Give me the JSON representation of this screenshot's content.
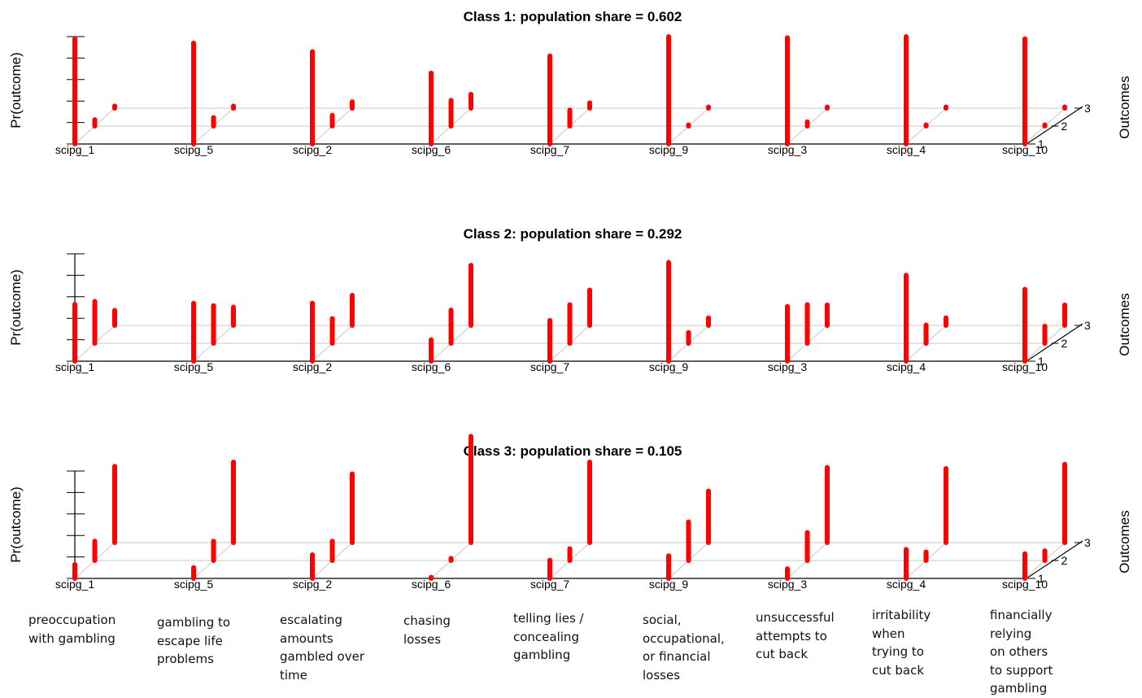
{
  "chart_data": [
    {
      "type": "bar",
      "title": "Class 1: population share = 0.602",
      "ylabel": "Pr(outcome)",
      "zlabel": "Outcomes",
      "categories": [
        "scipg_1",
        "scipg_5",
        "scipg_2",
        "scipg_6",
        "scipg_7",
        "scipg_9",
        "scipg_3",
        "scipg_4",
        "scipg_10"
      ],
      "outcomes": [
        "1",
        "2",
        "3"
      ],
      "ylim": [
        0,
        1
      ],
      "series": [
        {
          "name": "1",
          "values": [
            0.98,
            0.94,
            0.86,
            0.66,
            0.82,
            1.0,
            0.99,
            1.0,
            0.98
          ]
        },
        {
          "name": "2",
          "values": [
            0.06,
            0.08,
            0.1,
            0.24,
            0.15,
            0.01,
            0.04,
            0.01,
            0.01
          ]
        },
        {
          "name": "3",
          "values": [
            0.02,
            0.02,
            0.06,
            0.13,
            0.05,
            0.01,
            0.01,
            0.01,
            0.01
          ]
        }
      ]
    },
    {
      "type": "bar",
      "title": "Class 2: population share = 0.292",
      "ylabel": "Pr(outcome)",
      "zlabel": "Outcomes",
      "categories": [
        "scipg_1",
        "scipg_5",
        "scipg_2",
        "scipg_6",
        "scipg_7",
        "scipg_9",
        "scipg_3",
        "scipg_4",
        "scipg_10"
      ],
      "outcomes": [
        "1",
        "2",
        "3"
      ],
      "ylim": [
        0,
        1
      ],
      "series": [
        {
          "name": "1",
          "values": [
            0.53,
            0.54,
            0.54,
            0.2,
            0.38,
            0.92,
            0.51,
            0.8,
            0.67
          ]
        },
        {
          "name": "2",
          "values": [
            0.39,
            0.35,
            0.23,
            0.31,
            0.36,
            0.1,
            0.36,
            0.17,
            0.16
          ]
        },
        {
          "name": "3",
          "values": [
            0.14,
            0.17,
            0.28,
            0.56,
            0.33,
            0.07,
            0.19,
            0.07,
            0.19
          ]
        }
      ]
    },
    {
      "type": "bar",
      "title": "Class 3: population share = 0.105",
      "ylabel": "Pr(outcome)",
      "zlabel": "Outcomes",
      "categories": [
        "scipg_1",
        "scipg_5",
        "scipg_2",
        "scipg_6",
        "scipg_7",
        "scipg_9",
        "scipg_3",
        "scipg_4",
        "scipg_10"
      ],
      "outcomes": [
        "1",
        "2",
        "3"
      ],
      "ylim": [
        0,
        1
      ],
      "series": [
        {
          "name": "1",
          "values": [
            0.13,
            0.1,
            0.22,
            0.01,
            0.17,
            0.21,
            0.09,
            0.27,
            0.23
          ]
        },
        {
          "name": "2",
          "values": [
            0.18,
            0.18,
            0.18,
            0.02,
            0.11,
            0.36,
            0.26,
            0.08,
            0.09
          ]
        },
        {
          "name": "3",
          "values": [
            0.71,
            0.75,
            0.64,
            0.99,
            0.75,
            0.48,
            0.7,
            0.69,
            0.73
          ]
        }
      ]
    }
  ],
  "descriptions": [
    {
      "lines": [
        "preoccupation",
        "with gambling"
      ]
    },
    {
      "lines": [
        "gambling to",
        "escape life",
        "problems"
      ]
    },
    {
      "lines": [
        "escalating",
        "amounts",
        "gambled over",
        "time"
      ]
    },
    {
      "lines": [
        "chasing",
        "losses"
      ]
    },
    {
      "lines": [
        "telling lies /",
        "concealing",
        "gambling"
      ]
    },
    {
      "lines": [
        "social,",
        "occupational,",
        "or financial",
        "losses"
      ]
    },
    {
      "lines": [
        "unsuccessful",
        "attempts to",
        "cut back"
      ]
    },
    {
      "lines": [
        "irritability",
        "when",
        "trying to",
        "cut back"
      ]
    },
    {
      "lines": [
        "financially",
        "relying",
        "on others",
        "to support",
        "gambling"
      ]
    }
  ],
  "colors": {
    "bar": "#ff0000",
    "grid": "#c8c8c8",
    "axis": "#000000"
  }
}
